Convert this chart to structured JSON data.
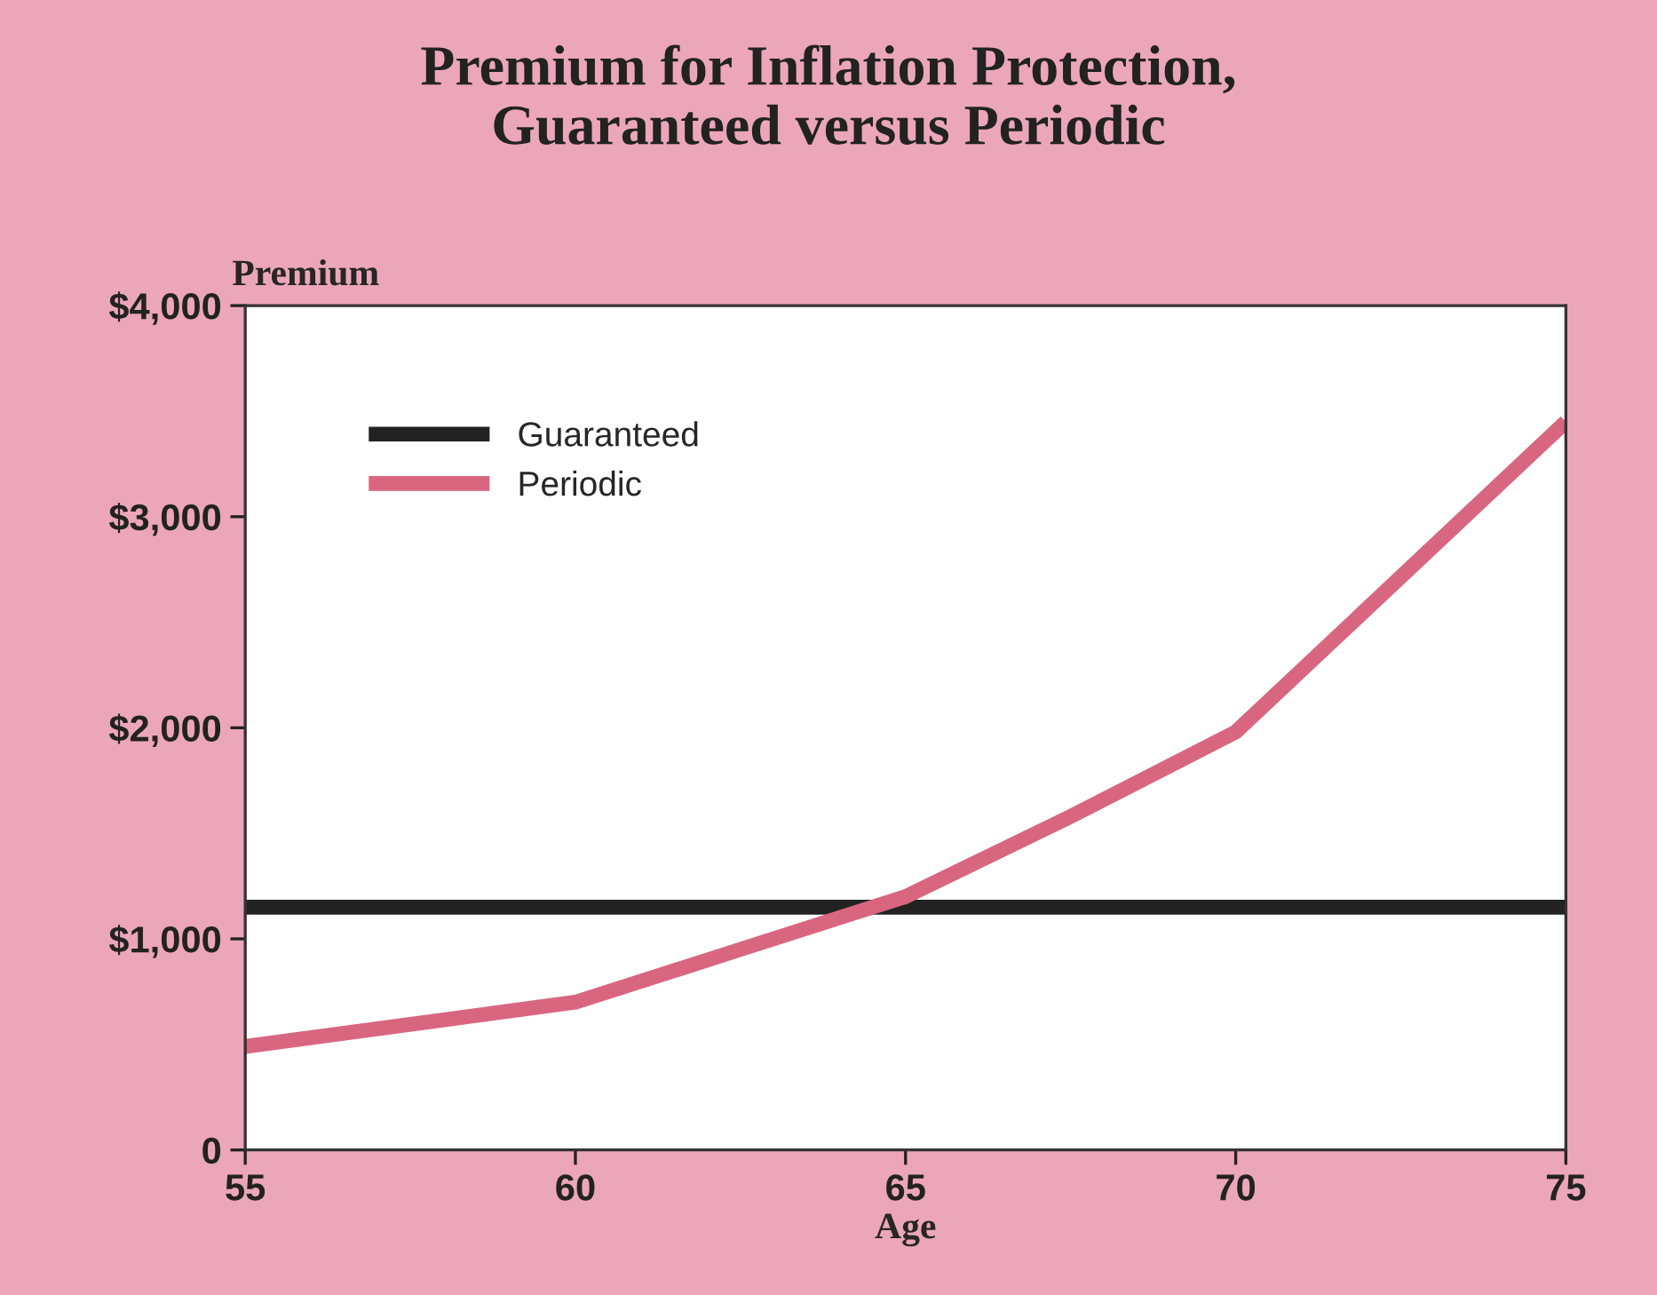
{
  "chart_data": {
    "type": "line",
    "title": "Premium for Inflation Protection,\nGuaranteed versus Periodic",
    "xlabel": "Age",
    "ylabel": "Premium",
    "x": [
      55,
      60,
      62.5,
      65,
      67.5,
      70,
      75
    ],
    "series": [
      {
        "name": "Guaranteed",
        "color": "#222222",
        "values": [
          1150,
          1150,
          1150,
          1150,
          1150,
          1150,
          1150
        ]
      },
      {
        "name": "Periodic",
        "color": "#d9667f",
        "values": [
          490,
          700,
          950,
          1200,
          1580,
          1980,
          3450
        ]
      }
    ],
    "xlim": [
      55,
      75
    ],
    "xticks": [
      55,
      60,
      65,
      70,
      75
    ],
    "ylim": [
      0,
      4000
    ],
    "yticks": [
      0,
      {
        "value": 1000,
        "label": "$1,000"
      },
      {
        "value": 2000,
        "label": "$2,000"
      },
      {
        "value": 3000,
        "label": "$3,000"
      },
      {
        "value": 4000,
        "label": "$4,000"
      }
    ],
    "grid": false,
    "legend": "top left",
    "marker": "none",
    "line_style": "solid"
  }
}
